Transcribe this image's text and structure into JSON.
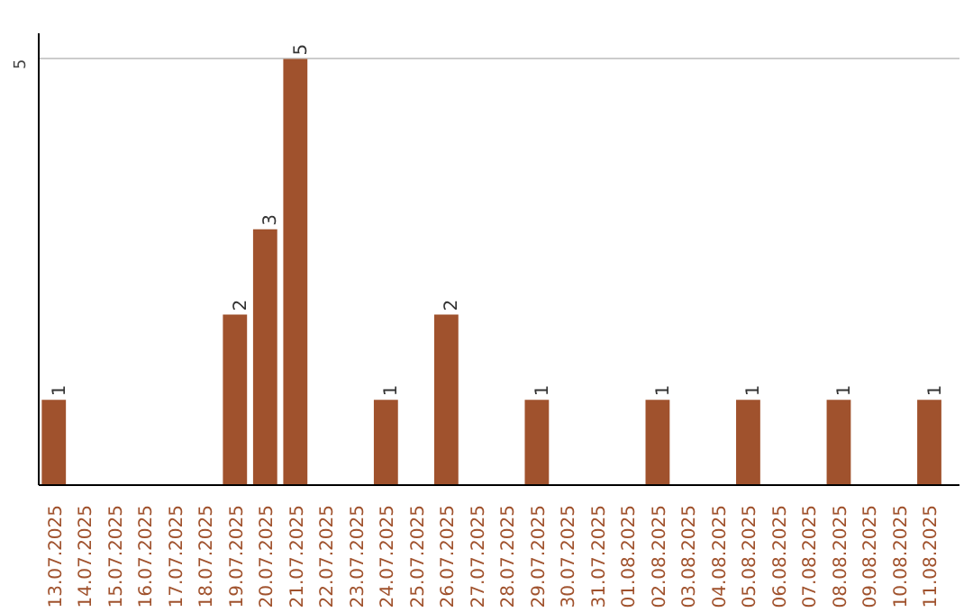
{
  "chart_data": {
    "type": "bar",
    "categories": [
      "13.07.2025",
      "14.07.2025",
      "15.07.2025",
      "16.07.2025",
      "17.07.2025",
      "18.07.2025",
      "19.07.2025",
      "20.07.2025",
      "21.07.2025",
      "22.07.2025",
      "23.07.2025",
      "24.07.2025",
      "25.07.2025",
      "26.07.2025",
      "27.07.2025",
      "28.07.2025",
      "29.07.2025",
      "30.07.2025",
      "31.07.2025",
      "01.08.2025",
      "02.08.2025",
      "03.08.2025",
      "04.08.2025",
      "05.08.2025",
      "06.08.2025",
      "07.08.2025",
      "08.08.2025",
      "09.08.2025",
      "10.08.2025",
      "11.08.2025"
    ],
    "values": [
      1,
      null,
      null,
      null,
      null,
      null,
      2,
      3,
      5,
      null,
      null,
      1,
      null,
      2,
      null,
      null,
      1,
      null,
      null,
      null,
      1,
      null,
      null,
      1,
      null,
      null,
      1,
      null,
      null,
      1
    ],
    "color": "#a0522d",
    "ylim": [
      0,
      5.3
    ],
    "yticks": [
      5
    ],
    "grid": "y",
    "data_labels": true
  }
}
